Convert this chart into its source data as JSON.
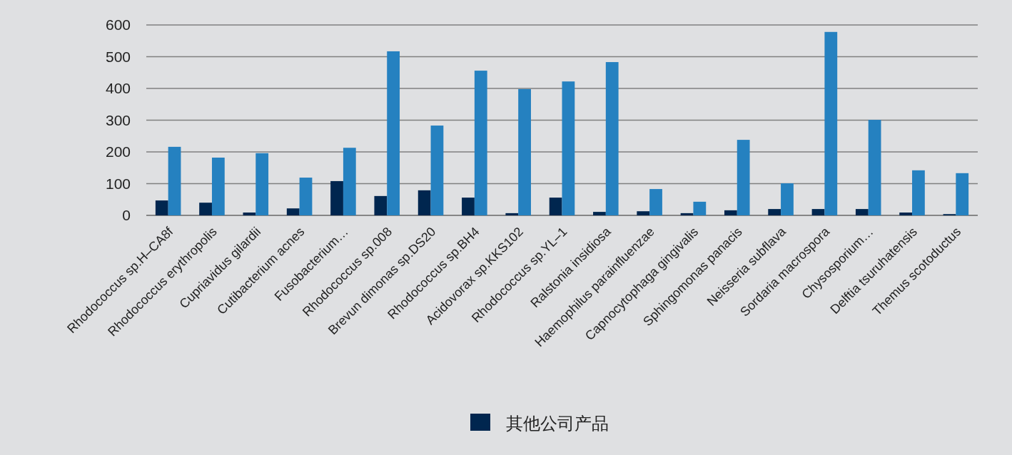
{
  "chart_data": {
    "type": "bar",
    "categories": [
      "Rhodococcus sp.H–CA8f",
      "Rhodococcus erythropolis",
      "Cupriavidus gilardii",
      "Cutibacterium acnes",
      "Fusobacterium…",
      "Rhodococcus sp.008",
      "Brevun dimonas sp.DS20",
      "Rhodococcus sp.BH4",
      "Acidovorax sp.KKS102",
      "Rhodococcus sp.YL–1",
      "Ralstonia insidiosa",
      "Haemophilus parainfluenzae",
      "Capnocytophaga gingivalis",
      "Sphingomonas panacis",
      "Neisseria subflava",
      "Sordaria macrospora",
      "Chysosporium…",
      "Delftia tsuruhatensis",
      "Themus scotoductus"
    ],
    "series": [
      {
        "name": "其他公司产品",
        "color": "#00264f",
        "values": [
          47,
          40,
          9,
          22,
          108,
          61,
          79,
          56,
          7,
          56,
          11,
          13,
          7,
          16,
          20,
          20,
          20,
          9,
          4
        ]
      },
      {
        "color": "#2581c0",
        "values": [
          216,
          182,
          196,
          119,
          213,
          517,
          283,
          456,
          398,
          422,
          483,
          83,
          43,
          238,
          101,
          578,
          301,
          142,
          133
        ]
      }
    ],
    "ylim": [
      0,
      600
    ],
    "yticks": [
      0,
      100,
      200,
      300,
      400,
      500,
      600
    ],
    "grid": "y",
    "legend": "bottom"
  }
}
